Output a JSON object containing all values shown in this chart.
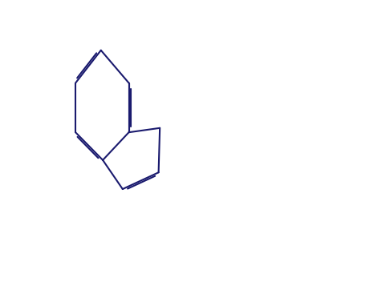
{
  "background_color": "#ffffff",
  "line_color": "#1a1a6e",
  "line_width": 1.5,
  "font_size": 11,
  "figsize": [
    4.76,
    3.82
  ],
  "dpi": 100
}
